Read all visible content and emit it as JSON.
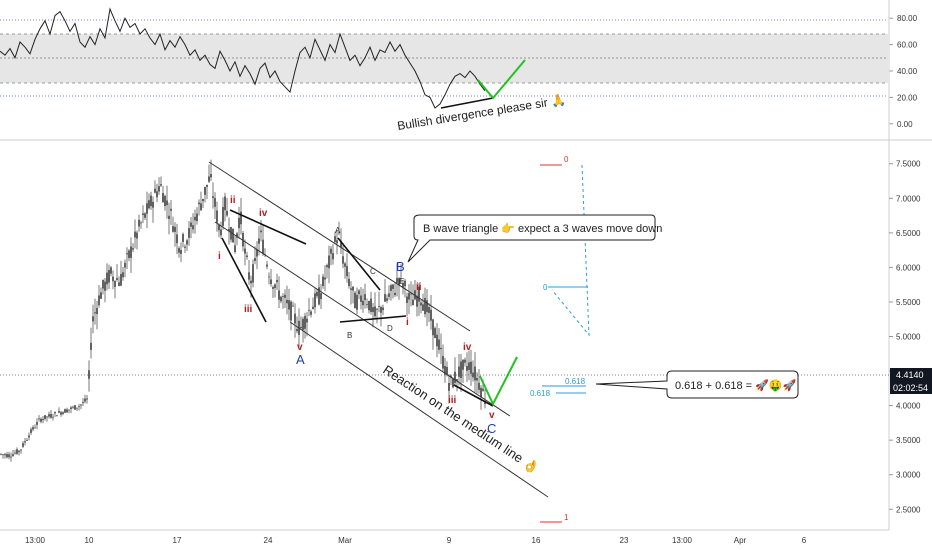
{
  "chart_data": [
    {
      "type": "line",
      "panel": "indicator",
      "ylim": [
        -10,
        90
      ],
      "yticks": [
        "80.00",
        "60.00",
        "40.00",
        "20.00",
        "0.00"
      ],
      "band": [
        30,
        70
      ],
      "levels": [
        20,
        50,
        80
      ],
      "series": [
        {
          "x": [
            0,
            5,
            10,
            15,
            20,
            25,
            30,
            35,
            40,
            45,
            50,
            55,
            60,
            65,
            70,
            75,
            80,
            85,
            90,
            95,
            100,
            105,
            110,
            115,
            120,
            125,
            130,
            135,
            140,
            145,
            150,
            155,
            160,
            165,
            170,
            175,
            180,
            185,
            190,
            195,
            200,
            205,
            210,
            215,
            220,
            225,
            230,
            235,
            240,
            245,
            250,
            255,
            260,
            265,
            270,
            275,
            280,
            285,
            290,
            295,
            300,
            305,
            310,
            315,
            320,
            325,
            330,
            335,
            340,
            345,
            350,
            355,
            360,
            365,
            370,
            375,
            380,
            385,
            390,
            395,
            400,
            405,
            410,
            415,
            420,
            425,
            430,
            435,
            440,
            445,
            450,
            455,
            460,
            465,
            470,
            475,
            480,
            485
          ],
          "values": [
            55,
            52,
            57,
            50,
            62,
            58,
            53,
            64,
            72,
            78,
            68,
            82,
            85,
            78,
            70,
            76,
            62,
            58,
            66,
            60,
            72,
            65,
            87,
            78,
            70,
            80,
            73,
            76,
            68,
            72,
            65,
            60,
            68,
            56,
            63,
            58,
            66,
            60,
            52,
            56,
            48,
            52,
            45,
            42,
            55,
            48,
            40,
            47,
            36,
            44,
            38,
            30,
            42,
            46,
            35,
            40,
            32,
            28,
            24,
            40,
            54,
            58,
            50,
            64,
            56,
            48,
            60,
            54,
            68,
            58,
            48,
            52,
            44,
            50,
            58,
            48,
            56,
            54,
            62,
            55,
            60,
            52,
            46,
            40,
            32,
            22,
            20,
            12,
            15,
            22,
            30,
            36,
            38,
            35,
            40,
            36,
            30,
            25
          ]
        }
      ],
      "annotation": "Bullish divergence please sir 🙏"
    },
    {
      "type": "candlestick",
      "panel": "price",
      "ylim": [
        2.2,
        7.8
      ],
      "yticks": [
        "7.5000",
        "7.0000",
        "6.5000",
        "6.0000",
        "5.5000",
        "5.0000",
        "4.5000",
        "4.0000",
        "3.5000",
        "3.0000",
        "2.5000"
      ],
      "xticks": [
        "13:00",
        "10",
        "17",
        "24",
        "Mar",
        "9",
        "16",
        "23",
        "13:00",
        "Apr",
        "6"
      ],
      "path_points": [
        [
          0,
          3.3
        ],
        [
          10,
          3.28
        ],
        [
          20,
          3.35
        ],
        [
          30,
          3.6
        ],
        [
          40,
          3.8
        ],
        [
          50,
          3.85
        ],
        [
          60,
          3.9
        ],
        [
          70,
          3.95
        ],
        [
          80,
          4.0
        ],
        [
          88,
          4.1
        ],
        [
          92,
          5.2
        ],
        [
          100,
          5.6
        ],
        [
          110,
          5.9
        ],
        [
          120,
          5.8
        ],
        [
          130,
          6.2
        ],
        [
          140,
          6.6
        ],
        [
          150,
          6.9
        ],
        [
          160,
          7.2
        ],
        [
          170,
          6.8
        ],
        [
          180,
          6.3
        ],
        [
          190,
          6.5
        ],
        [
          200,
          6.9
        ],
        [
          210,
          7.3
        ],
        [
          215,
          6.9
        ],
        [
          220,
          6.5
        ],
        [
          225,
          6.9
        ],
        [
          230,
          6.6
        ],
        [
          235,
          6.3
        ],
        [
          240,
          6.8
        ],
        [
          245,
          6.2
        ],
        [
          250,
          5.8
        ],
        [
          255,
          6.0
        ],
        [
          260,
          6.5
        ],
        [
          265,
          6.2
        ],
        [
          270,
          5.9
        ],
        [
          280,
          5.6
        ],
        [
          290,
          5.4
        ],
        [
          300,
          5.1
        ],
        [
          310,
          5.4
        ],
        [
          320,
          5.6
        ],
        [
          330,
          6.1
        ],
        [
          338,
          6.5
        ],
        [
          345,
          6.0
        ],
        [
          355,
          5.5
        ],
        [
          365,
          5.6
        ],
        [
          375,
          5.3
        ],
        [
          385,
          5.5
        ],
        [
          395,
          5.7
        ],
        [
          400,
          5.9
        ],
        [
          410,
          5.5
        ],
        [
          420,
          5.6
        ],
        [
          430,
          5.3
        ],
        [
          440,
          4.8
        ],
        [
          450,
          4.3
        ],
        [
          460,
          4.5
        ],
        [
          470,
          4.6
        ],
        [
          480,
          4.3
        ],
        [
          488,
          4.0
        ]
      ],
      "last_price": "4.4140",
      "countdown": "02:02:54",
      "wave_labels": [
        "ii",
        "iv",
        "i",
        "iii",
        "v",
        "A",
        "A",
        "B",
        "C",
        "D",
        "E",
        "B",
        "ii",
        "i",
        "iv",
        "iii",
        "v",
        "C"
      ],
      "fib_labels": {
        "top": "0",
        "mid": "0",
        "fib_a": "0.618",
        "fib_b": "0.618",
        "bottom": "1"
      },
      "callout_b": "B wave triangle 👉 expect a 3 waves move down",
      "callout_fib": "0.618 + 0.618 = 🚀🤑🚀",
      "annotation_channel": "Reaction on the medium line 👌"
    }
  ],
  "colors": {
    "candle": "#1f1f1f",
    "wave_red": "#b01f1f",
    "wave_blue": "#1f3fa8",
    "green": "#22c222",
    "fib_red": "#e03030",
    "fib_blue": "#2a9be0",
    "price_tag": "#131722",
    "band_fill": "#e6e6e6"
  }
}
